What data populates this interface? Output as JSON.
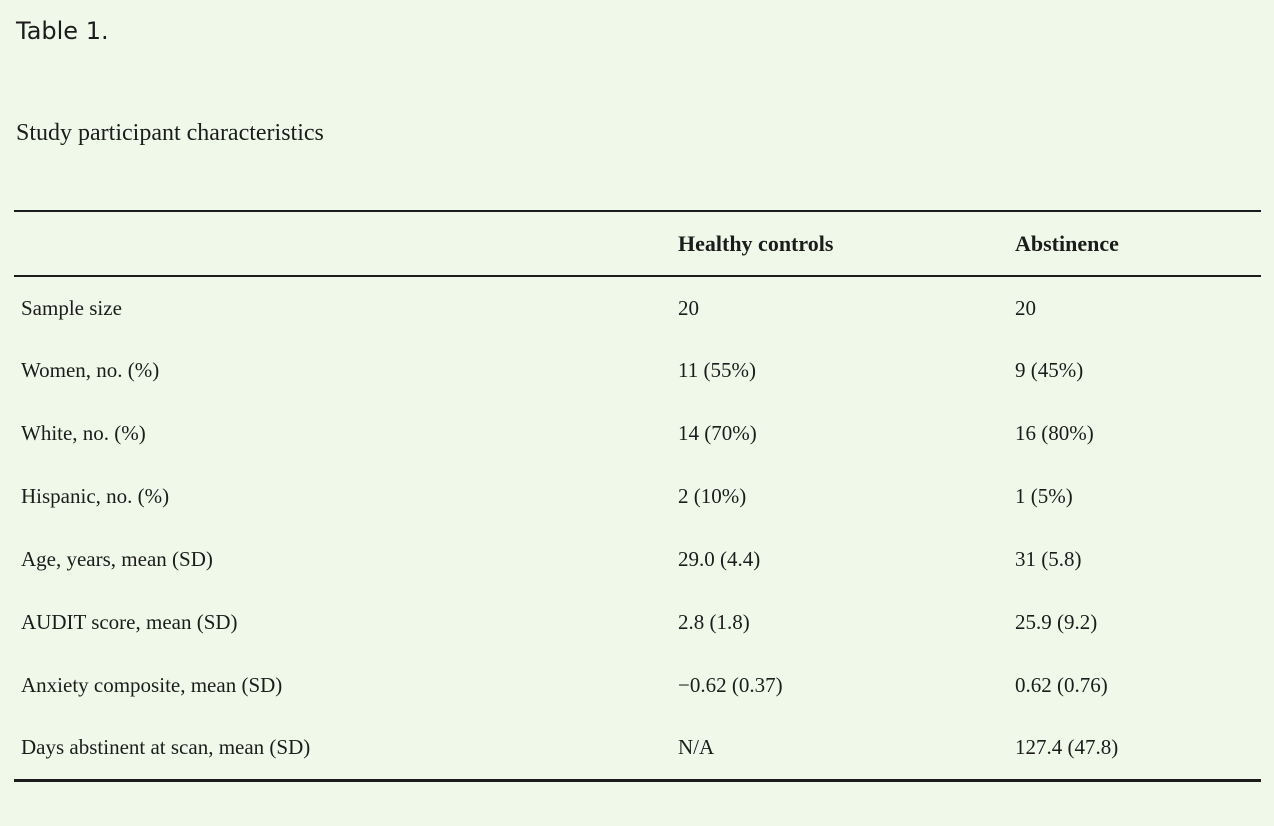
{
  "colors": {
    "background": "#f0f9e9",
    "text": "#1c1c1c",
    "rule": "#1c1c1c"
  },
  "title": "Table 1.",
  "caption": "Study participant characteristics",
  "table": {
    "columns": [
      "",
      "Healthy controls",
      "Abstinence"
    ],
    "rows": [
      {
        "label": "Sample size",
        "healthy_controls": "20",
        "abstinence": "20"
      },
      {
        "label": "Women, no. (%)",
        "healthy_controls": "11 (55%)",
        "abstinence": "9 (45%)"
      },
      {
        "label": "White, no. (%)",
        "healthy_controls": "14 (70%)",
        "abstinence": "16 (80%)"
      },
      {
        "label": "Hispanic, no. (%)",
        "healthy_controls": "2 (10%)",
        "abstinence": "1 (5%)"
      },
      {
        "label": "Age, years, mean (SD)",
        "healthy_controls": "29.0 (4.4)",
        "abstinence": "31 (5.8)"
      },
      {
        "label": "AUDIT score, mean (SD)",
        "healthy_controls": "2.8 (1.8)",
        "abstinence": "25.9 (9.2)"
      },
      {
        "label": "Anxiety composite, mean (SD)",
        "healthy_controls": "−0.62 (0.37)",
        "abstinence": "0.62 (0.76)"
      },
      {
        "label": "Days abstinent at scan, mean (SD)",
        "healthy_controls": "N/A",
        "abstinence": "127.4 (47.8)"
      }
    ]
  }
}
